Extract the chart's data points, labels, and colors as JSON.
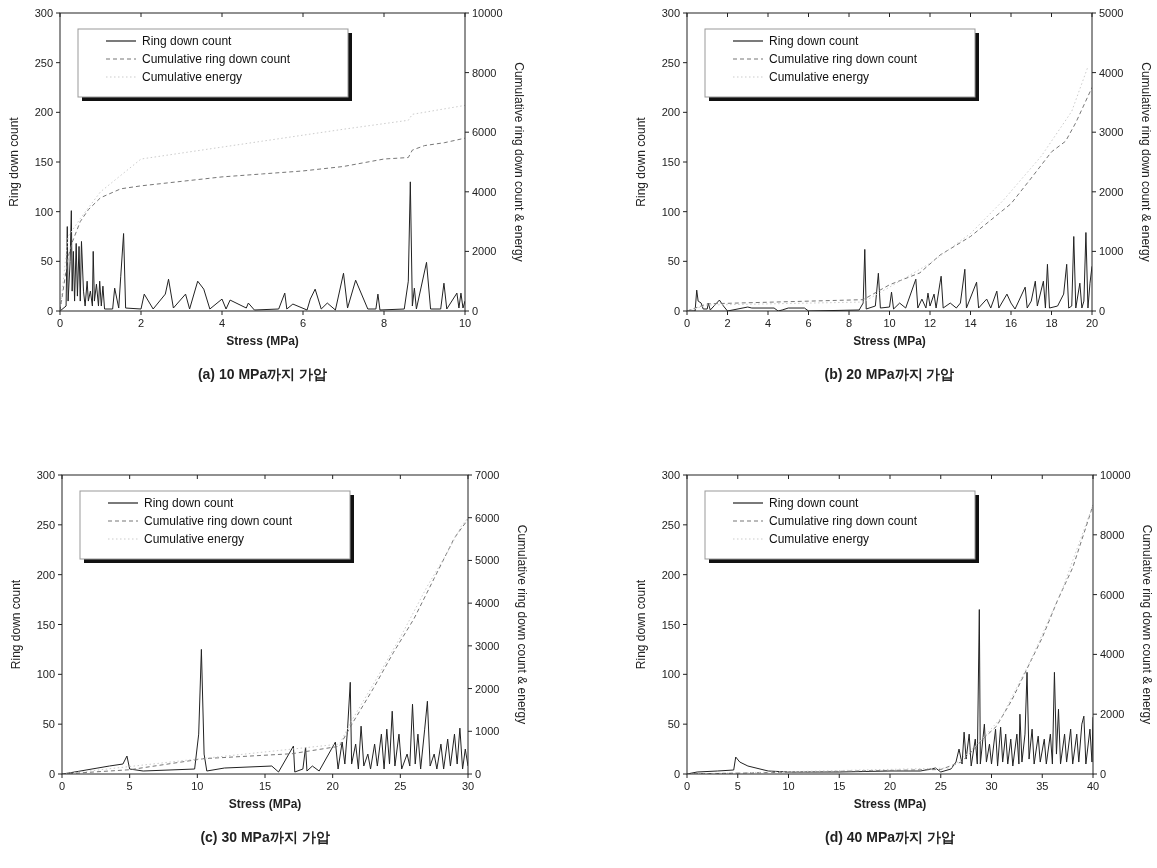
{
  "chart_data": [
    {
      "type": "line",
      "xlabel": "Stress (MPa)",
      "ylabel": "Ring down count",
      "y2label": "Cumulative ring down count & energy",
      "xlim": [
        0,
        10
      ],
      "xticks": [
        0,
        2,
        4,
        6,
        8,
        10
      ],
      "ylim": [
        0,
        300
      ],
      "yticks": [
        0,
        50,
        100,
        150,
        200,
        250,
        300
      ],
      "y2lim": [
        0,
        10000
      ],
      "y2ticks": [
        0,
        2000,
        4000,
        6000,
        8000,
        10000
      ],
      "legend": "top left",
      "annotations": [
        "(a) 10 MPa까지 가압"
      ],
      "series": [
        {
          "name": "Ring down count",
          "color": "#222222",
          "line_style": "solid",
          "x": [
            0,
            0.15,
            0.18,
            0.2,
            0.25,
            0.28,
            0.3,
            0.33,
            0.36,
            0.4,
            0.43,
            0.47,
            0.5,
            0.53,
            0.58,
            0.62,
            0.67,
            0.7,
            0.75,
            0.8,
            0.82,
            0.85,
            0.9,
            0.95,
            0.98,
            1.02,
            1.06,
            1.1,
            1.3,
            1.35,
            1.45,
            1.5,
            1.57,
            1.62,
            2.0,
            2.08,
            2.3,
            2.6,
            2.68,
            2.8,
            3.1,
            3.2,
            3.4,
            3.55,
            3.7,
            4.0,
            4.1,
            4.2,
            4.6,
            4.65,
            4.8,
            5.4,
            5.55,
            5.6,
            5.75,
            6.1,
            6.18,
            6.3,
            6.45,
            6.6,
            6.8,
            7.0,
            7.1,
            7.3,
            7.6,
            7.8,
            7.85,
            7.9,
            8.5,
            8.6,
            8.65,
            8.7,
            8.75,
            8.8,
            9.05,
            9.15,
            9.4,
            9.48,
            9.55,
            9.8,
            9.85,
            9.9,
            9.95,
            10.0
          ],
          "values": [
            0,
            5,
            85,
            10,
            50,
            101,
            20,
            60,
            10,
            68,
            15,
            65,
            10,
            70,
            20,
            5,
            30,
            10,
            20,
            5,
            60,
            10,
            27,
            5,
            30,
            5,
            25,
            2,
            2,
            23,
            3,
            35,
            78,
            3,
            2,
            17,
            2,
            17,
            32,
            3,
            17,
            2,
            30,
            22,
            2,
            12,
            2,
            11,
            3,
            8,
            1,
            2,
            18,
            2,
            7,
            1,
            12,
            22,
            2,
            8,
            1,
            38,
            3,
            31,
            2,
            2,
            17,
            1,
            2,
            30,
            130,
            5,
            23,
            2,
            49,
            2,
            2,
            28,
            2,
            18,
            3,
            18,
            3,
            10
          ]
        },
        {
          "name": "Cumulative ring down count",
          "color": "#777777",
          "line_style": "dashed",
          "axis": "y2",
          "x": [
            0,
            0.2,
            0.3,
            0.5,
            0.7,
            1.0,
            1.5,
            2.0,
            3.0,
            4.0,
            5.0,
            6.0,
            7.0,
            8.0,
            8.6,
            8.7,
            9.0,
            9.5,
            10
          ],
          "values": [
            0,
            1800,
            2300,
            3000,
            3400,
            3800,
            4100,
            4200,
            4350,
            4500,
            4600,
            4700,
            4850,
            5100,
            5150,
            5400,
            5550,
            5650,
            5800
          ]
        },
        {
          "name": "Cumulative energy",
          "color": "#cccccc",
          "line_style": "dotted",
          "axis": "y2",
          "x": [
            0,
            0.2,
            0.5,
            1,
            2,
            3,
            4,
            5,
            6,
            7,
            8.6,
            8.7,
            10
          ],
          "values": [
            0,
            2500,
            3100,
            4000,
            5100,
            5300,
            5500,
            5700,
            5900,
            6100,
            6400,
            6600,
            6900
          ]
        }
      ]
    },
    {
      "type": "line",
      "xlabel": "Stress (MPa)",
      "ylabel": "Ring down count",
      "y2label": "Cumulative ring down count & energy",
      "xlim": [
        0,
        20
      ],
      "xticks": [
        0,
        2,
        4,
        6,
        8,
        10,
        12,
        14,
        16,
        18,
        20
      ],
      "ylim": [
        0,
        300
      ],
      "yticks": [
        0,
        50,
        100,
        150,
        200,
        250,
        300
      ],
      "y2lim": [
        0,
        5000
      ],
      "y2ticks": [
        0,
        1000,
        2000,
        3000,
        4000,
        5000
      ],
      "legend": "top left",
      "annotations": [
        "(b) 20 MPa까지 가압"
      ],
      "series": [
        {
          "name": "Ring down count",
          "color": "#222222",
          "line_style": "solid",
          "x": [
            0,
            0.4,
            0.48,
            0.55,
            0.7,
            0.8,
            1.0,
            1.05,
            1.15,
            1.6,
            1.8,
            2.0,
            3.0,
            3.2,
            4.3,
            4.5,
            4.7,
            5.0,
            5.8,
            6.0,
            8.5,
            8.7,
            8.78,
            8.85,
            9.3,
            9.45,
            9.55,
            10.0,
            10.1,
            10.2,
            10.5,
            10.8,
            11.3,
            11.4,
            11.6,
            11.8,
            11.9,
            12.0,
            12.2,
            12.3,
            12.5,
            12.55,
            12.65,
            13.0,
            13.3,
            13.5,
            13.72,
            13.8,
            14.3,
            14.4,
            14.8,
            15.0,
            15.3,
            15.4,
            15.8,
            16.0,
            16.2,
            16.7,
            16.8,
            17.0,
            17.2,
            17.3,
            17.6,
            17.7,
            17.8,
            17.9,
            18.3,
            18.6,
            18.75,
            18.85,
            19.0,
            19.1,
            19.2,
            19.4,
            19.5,
            19.6,
            19.7,
            19.8,
            19.9,
            20.0
          ],
          "values": [
            0,
            0,
            21,
            10,
            8,
            2,
            2,
            8,
            1,
            11,
            5,
            0,
            4,
            3,
            3,
            0,
            1,
            3,
            3,
            0,
            1,
            8,
            62,
            2,
            5,
            38,
            3,
            4,
            19,
            2,
            8,
            3,
            32,
            3,
            12,
            3,
            18,
            5,
            17,
            3,
            29,
            35,
            3,
            8,
            3,
            8,
            42,
            3,
            29,
            3,
            12,
            3,
            20,
            3,
            17,
            8,
            2,
            24,
            3,
            10,
            30,
            5,
            30,
            3,
            47,
            3,
            5,
            17,
            47,
            3,
            5,
            75,
            3,
            28,
            3,
            10,
            79,
            3,
            28,
            45
          ]
        },
        {
          "name": "Cumulative ring down count",
          "color": "#777777",
          "line_style": "dashed",
          "axis": "y2",
          "x": [
            0,
            1,
            8.7,
            10,
            11.5,
            12.5,
            14,
            16,
            17,
            18,
            18.7,
            19.2,
            20
          ],
          "values": [
            0,
            120,
            190,
            440,
            640,
            940,
            1250,
            1800,
            2230,
            2670,
            2850,
            3160,
            3750
          ]
        },
        {
          "name": "Cumulative energy",
          "color": "#cccccc",
          "line_style": "dotted",
          "axis": "y2",
          "x": [
            0,
            1,
            8.7,
            10,
            12,
            14,
            15.6,
            17.5,
            19,
            19.8
          ],
          "values": [
            0,
            100,
            150,
            400,
            800,
            1300,
            1850,
            2600,
            3350,
            4100
          ]
        }
      ]
    },
    {
      "type": "line",
      "xlabel": "Stress (MPa)",
      "ylabel": "Ring down count",
      "y2label": "Cumulative ring down count & energy",
      "xlim": [
        0,
        30
      ],
      "xticks": [
        0,
        5,
        10,
        15,
        20,
        25,
        30
      ],
      "ylim": [
        0,
        300
      ],
      "yticks": [
        0,
        50,
        100,
        150,
        200,
        250,
        300
      ],
      "y2lim": [
        0,
        7000
      ],
      "y2ticks": [
        0,
        1000,
        2000,
        3000,
        4000,
        5000,
        6000,
        7000
      ],
      "legend": "top left",
      "annotations": [
        "(c) 30 MPa까지 가압"
      ],
      "series": [
        {
          "name": "Ring down count",
          "color": "#222222",
          "line_style": "solid",
          "x": [
            0,
            0.5,
            3.5,
            4.5,
            4.8,
            5.0,
            6,
            9.8,
            10.1,
            10.3,
            10.5,
            10.7,
            12,
            15.5,
            16,
            17.1,
            17.2,
            17.8,
            18.0,
            18.1,
            18.5,
            19,
            20.2,
            20.4,
            20.7,
            20.9,
            21.1,
            21.3,
            21.4,
            21.7,
            21.9,
            22.1,
            22.3,
            22.6,
            22.8,
            23.1,
            23.3,
            23.6,
            23.8,
            24.0,
            24.2,
            24.4,
            24.6,
            24.9,
            25.1,
            25.5,
            25.7,
            25.9,
            26.1,
            26.3,
            26.5,
            26.8,
            27.0,
            27.2,
            27.5,
            27.7,
            28.0,
            28.2,
            28.5,
            28.7,
            29.0,
            29.2,
            29.4,
            29.6,
            29.8,
            30
          ],
          "values": [
            0,
            1,
            8,
            10,
            18,
            5,
            3,
            5,
            40,
            125,
            20,
            3,
            6,
            8,
            2,
            28,
            2,
            5,
            27,
            3,
            8,
            3,
            32,
            5,
            32,
            10,
            45,
            92,
            10,
            30,
            5,
            48,
            8,
            20,
            5,
            30,
            8,
            40,
            5,
            45,
            10,
            63,
            8,
            40,
            5,
            20,
            8,
            70,
            10,
            40,
            5,
            45,
            73,
            8,
            20,
            5,
            30,
            5,
            35,
            8,
            40,
            10,
            46,
            5,
            25,
            8
          ]
        },
        {
          "name": "Cumulative ring down count",
          "color": "#777777",
          "line_style": "dashed",
          "axis": "y2",
          "x": [
            0,
            5,
            10.5,
            17,
            20.5,
            21.5,
            23,
            24.5,
            26,
            27.5,
            29,
            30
          ],
          "values": [
            0,
            100,
            360,
            475,
            650,
            1210,
            2000,
            2850,
            3630,
            4580,
            5530,
            5960
          ]
        },
        {
          "name": "Cumulative energy",
          "color": "#cccccc",
          "line_style": "dotted",
          "axis": "y2",
          "x": [
            0,
            10,
            20.5,
            21.5,
            23,
            25,
            27,
            28.5,
            29.5,
            30
          ],
          "values": [
            0,
            350,
            700,
            1300,
            2100,
            3200,
            4400,
            5200,
            5800,
            6000
          ]
        }
      ]
    },
    {
      "type": "line",
      "xlabel": "Stress (MPa)",
      "ylabel": "Ring down count",
      "y2label": "Cumulative ring down count & energy",
      "xlim": [
        0,
        40
      ],
      "xticks": [
        0,
        5,
        10,
        15,
        20,
        25,
        30,
        35,
        40
      ],
      "ylim": [
        0,
        300
      ],
      "yticks": [
        0,
        50,
        100,
        150,
        200,
        250,
        300
      ],
      "y2lim": [
        0,
        10000
      ],
      "y2ticks": [
        0,
        2000,
        4000,
        6000,
        8000,
        10000
      ],
      "legend": "top left",
      "annotations": [
        "(d) 40 MPa까지 가압"
      ],
      "series": [
        {
          "name": "Ring down count",
          "color": "#222222",
          "line_style": "solid",
          "x": [
            0,
            1,
            3,
            4.6,
            4.8,
            5.2,
            6,
            8,
            10,
            15,
            20,
            23,
            24.5,
            25,
            26,
            26.5,
            26.8,
            27.1,
            27.3,
            27.5,
            27.8,
            28,
            28.4,
            28.6,
            28.8,
            28.9,
            29.3,
            29.5,
            29.8,
            30,
            30.4,
            30.6,
            30.9,
            31.1,
            31.4,
            31.6,
            31.9,
            32.1,
            32.5,
            32.7,
            32.8,
            33,
            33.3,
            33.5,
            33.7,
            34,
            34.2,
            34.6,
            34.8,
            35.2,
            35.4,
            35.8,
            36,
            36.2,
            36.4,
            36.6,
            36.8,
            37.2,
            37.4,
            37.8,
            38,
            38.4,
            38.6,
            38.9,
            39.1,
            39.3,
            39.7,
            39.9,
            40
          ],
          "values": [
            0,
            2,
            3,
            4,
            17,
            12,
            8,
            3,
            2,
            2,
            3,
            3,
            6,
            2,
            5,
            12,
            25,
            10,
            42,
            15,
            40,
            8,
            35,
            10,
            165,
            10,
            50,
            12,
            30,
            10,
            45,
            8,
            47,
            12,
            40,
            10,
            35,
            8,
            40,
            10,
            60,
            12,
            40,
            102,
            15,
            45,
            10,
            38,
            12,
            35,
            10,
            40,
            10,
            102,
            20,
            65,
            10,
            40,
            12,
            45,
            10,
            40,
            12,
            50,
            58,
            10,
            45,
            12,
            57
          ]
        },
        {
          "name": "Cumulative ring down count",
          "color": "#777777",
          "line_style": "dashed",
          "axis": "y2",
          "x": [
            0,
            25,
            27,
            28.5,
            29,
            30.5,
            32,
            33.5,
            35,
            36.5,
            38,
            39.3,
            40
          ],
          "values": [
            0,
            150,
            400,
            900,
            1120,
            1600,
            2470,
            3520,
            4560,
            5800,
            6900,
            8250,
            8990
          ]
        },
        {
          "name": "Cumulative energy",
          "color": "#cccccc",
          "line_style": "dotted",
          "axis": "y2",
          "x": [
            0,
            26,
            28.5,
            31,
            34,
            37,
            40
          ],
          "values": [
            0,
            200,
            950,
            1900,
            3900,
            6200,
            9000
          ]
        }
      ]
    }
  ]
}
